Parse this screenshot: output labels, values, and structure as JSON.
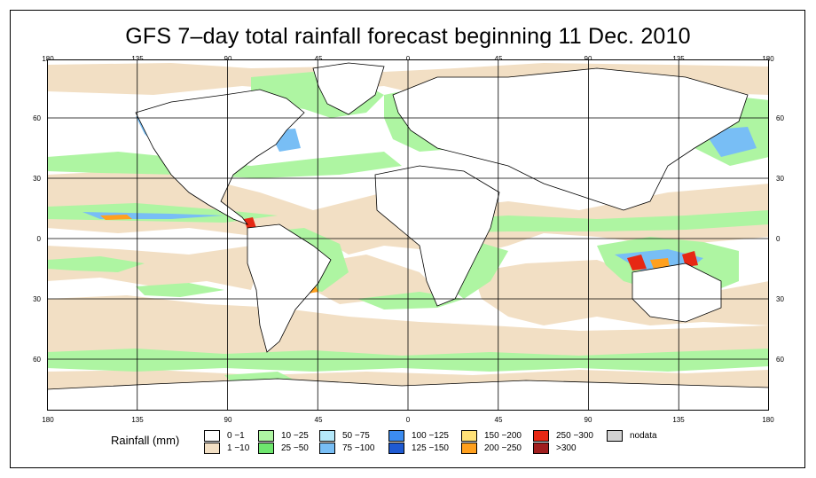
{
  "title": "GFS 7–day total rainfall forecast beginning 11 Dec. 2010",
  "axes": {
    "lon_ticks": [
      "180",
      "135",
      "90",
      "45",
      "0",
      "45",
      "90",
      "135",
      "180"
    ],
    "lat_ticks": [
      "60",
      "30",
      "0",
      "30",
      "60"
    ]
  },
  "colors": {
    "ocean_dry": "#ffffff",
    "light_rain": "#f2dfc4",
    "moderate_rain": "#90f090",
    "coastline": "#000000",
    "grid": "#000000"
  },
  "legend": {
    "title": "Rainfall (mm)",
    "items": [
      {
        "label": "0 −1",
        "color": "#ffffff"
      },
      {
        "label": "1 −10",
        "color": "#f2dfc4"
      },
      {
        "label": "10 −25",
        "color": "#aef5a2"
      },
      {
        "label": "25 −50",
        "color": "#6ee66e"
      },
      {
        "label": "50 −75",
        "color": "#b4e8fa"
      },
      {
        "label": "75 −100",
        "color": "#78bef5"
      },
      {
        "label": "100 −125",
        "color": "#3c8cf0"
      },
      {
        "label": "125 −150",
        "color": "#1e5ad2"
      },
      {
        "label": "150 −200",
        "color": "#ffe178"
      },
      {
        "label": "200 −250",
        "color": "#ffa01e"
      },
      {
        "label": "250 −300",
        "color": "#e62814"
      },
      {
        "label": ">300",
        "color": "#a01e1e"
      },
      {
        "label": "nodata",
        "color": "#d2d2d2"
      }
    ]
  }
}
